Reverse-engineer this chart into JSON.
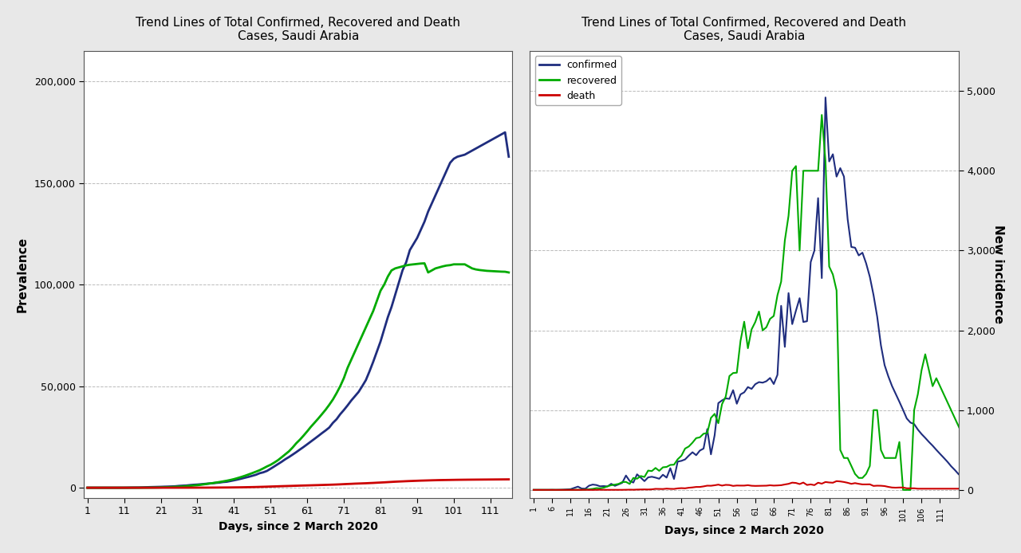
{
  "title": "Trend Lines of Total Confirmed, Recovered and Death\nCases, Saudi Arabia",
  "xlabel": "Days, since 2 March 2020",
  "ylabel_left": "Prevalence",
  "ylabel_right": "New incidence",
  "bg_color": "#e8e8e8",
  "plot_bg": "#ffffff",
  "confirmed_color": "#1f2d7e",
  "recovered_color": "#00aa00",
  "death_color": "#cc0000",
  "legend_labels": [
    "confirmed",
    "recovered",
    "death"
  ],
  "left_xticks": [
    1,
    11,
    21,
    31,
    41,
    51,
    61,
    71,
    81,
    91,
    101,
    111
  ],
  "right_xticks": [
    1,
    6,
    11,
    16,
    21,
    26,
    31,
    36,
    41,
    46,
    51,
    56,
    61,
    66,
    71,
    76,
    81,
    86,
    91,
    96,
    101,
    106,
    111
  ],
  "left_ylim": [
    -5000,
    215000
  ],
  "left_yticks": [
    0,
    50000,
    100000,
    150000,
    200000
  ],
  "right_ylim": [
    -100,
    5500
  ],
  "right_yticks": [
    0,
    1000,
    2000,
    3000,
    4000,
    5000
  ],
  "cumulative_confirmed": [
    0,
    0,
    0,
    0,
    0,
    1,
    1,
    2,
    5,
    11,
    20,
    45,
    86,
    103,
    118,
    171,
    238,
    299,
    344,
    392,
    435,
    511,
    562,
    631,
    720,
    900,
    1012,
    1104,
    1299,
    1453,
    1563,
    1720,
    1885,
    2039,
    2179,
    2369,
    2523,
    2795,
    2932,
    3287,
    3651,
    4033,
    4462,
    4934,
    5369,
    5862,
    6380,
    7142,
    7588,
    8274,
    9362,
    10484,
    11631,
    12772,
    14022,
    15102,
    16299,
    17522,
    18811,
    20077,
    21402,
    22753,
    24097,
    25459,
    26862,
    28189,
    29631,
    31938,
    33731,
    36198,
    38276,
    40522,
    42925,
    45030,
    47144,
    50000,
    53000,
    57345,
    62000,
    67000,
    72000,
    78000,
    84000,
    89000,
    95000,
    101000,
    107000,
    111000,
    117000,
    120000,
    123000,
    127000,
    131000,
    136000,
    140000,
    144000,
    148000,
    152000,
    156000,
    160000,
    162000,
    163000,
    163500,
    164000,
    165000,
    166000,
    167000,
    168000,
    169000,
    170000,
    171000,
    172000,
    173000,
    174000,
    175000,
    163000
  ],
  "cumulative_recovered": [
    0,
    0,
    0,
    0,
    0,
    0,
    0,
    0,
    0,
    0,
    1,
    2,
    3,
    5,
    8,
    16,
    29,
    51,
    70,
    98,
    143,
    202,
    268,
    343,
    441,
    541,
    616,
    766,
    906,
    1080,
    1242,
    1484,
    1720,
    1995,
    2234,
    2517,
    2805,
    3118,
    3434,
    3818,
    4246,
    4764,
    5308,
    5900,
    6549,
    7208,
    7912,
    8625,
    9528,
    10481,
    11317,
    12392,
    13561,
    14988,
    16453,
    17922,
    19789,
    21897,
    23673,
    25685,
    27789,
    30025,
    32024,
    34063,
    36207,
    38387,
    40827,
    43437,
    46564,
    50000,
    54000,
    59000,
    63000,
    67000,
    71000,
    75000,
    79000,
    83000,
    87000,
    92000,
    97000,
    100000,
    104000,
    107000,
    108000,
    108500,
    109000,
    109500,
    109800,
    110000,
    110200,
    110400,
    110500,
    106000,
    107000,
    108000,
    108500,
    109000,
    109400,
    109600,
    110000,
    110000,
    110000,
    110000,
    109000,
    108000,
    107500,
    107200,
    107000,
    106800,
    106700,
    106600,
    106500,
    106400,
    106350,
    106000,
    105800,
    105600
  ],
  "cumulative_deaths": [
    0,
    0,
    0,
    0,
    0,
    0,
    0,
    0,
    0,
    0,
    0,
    0,
    0,
    0,
    1,
    1,
    1,
    2,
    4,
    5,
    6,
    7,
    8,
    9,
    10,
    12,
    15,
    17,
    21,
    26,
    32,
    37,
    44,
    57,
    69,
    80,
    96,
    109,
    121,
    140,
    162,
    182,
    209,
    240,
    277,
    314,
    358,
    411,
    463,
    521,
    587,
    641,
    704,
    765,
    815,
    870,
    924,
    978,
    1037,
    1089,
    1139,
    1190,
    1242,
    1295,
    1353,
    1407,
    1463,
    1522,
    1590,
    1666,
    1757,
    1844,
    1917,
    2009,
    2071,
    2140,
    2200,
    2290,
    2368,
    2467,
    2560,
    2650,
    2759,
    2866,
    2965,
    3054,
    3130,
    3215,
    3291,
    3360,
    3429,
    3497,
    3547,
    3600,
    3652,
    3700,
    3750,
    3782,
    3810,
    3840,
    3870,
    3900,
    3920,
    3940,
    3960,
    3975,
    3990,
    4005,
    4020,
    4033,
    4048,
    4063,
    4078,
    4093,
    4108,
    4120,
    4130,
    4140
  ],
  "daily_confirmed": [
    0,
    0,
    0,
    0,
    0,
    1,
    0,
    1,
    3,
    6,
    9,
    25,
    41,
    17,
    15,
    53,
    67,
    61,
    45,
    48,
    43,
    76,
    51,
    69,
    89,
    180,
    112,
    92,
    195,
    154,
    110,
    157,
    165,
    154,
    140,
    190,
    154,
    272,
    137,
    355,
    364,
    382,
    429,
    472,
    435,
    493,
    518,
    762,
    446,
    686,
    1088,
    1122,
    1147,
    1141,
    1250,
    1080,
    1197,
    1223,
    1289,
    1266,
    1325,
    1351,
    1344,
    1362,
    1403,
    1327,
    1442,
    2307,
    1793,
    2467,
    2078,
    2246,
    2403,
    2105,
    2114,
    2856,
    3000,
    3657,
    2655,
    4919,
    4117,
    4207,
    3927,
    4033,
    3927,
    3392,
    3045,
    3036,
    2939,
    2973,
    2840,
    2671,
    2443,
    2170,
    1814,
    1564,
    1424,
    1303,
    1204,
    1105,
    1002,
    895,
    844,
    825,
    756,
    700,
    652,
    601,
    554,
    502,
    452,
    403,
    353,
    297,
    250,
    198,
    160
  ],
  "daily_recovered": [
    0,
    0,
    0,
    0,
    0,
    0,
    0,
    0,
    0,
    0,
    1,
    1,
    1,
    2,
    3,
    8,
    13,
    22,
    19,
    28,
    45,
    59,
    66,
    75,
    98,
    100,
    75,
    150,
    140,
    174,
    162,
    242,
    236,
    275,
    239,
    283,
    288,
    313,
    316,
    384,
    428,
    518,
    544,
    592,
    649,
    659,
    704,
    713,
    903,
    953,
    836,
    1075,
    1169,
    1427,
    1465,
    1469,
    1867,
    2108,
    1776,
    2012,
    2104,
    2236,
    1999,
    2039,
    2144,
    2180,
    2440,
    2610,
    3127,
    3436,
    4000,
    4059,
    3000,
    4000,
    4000,
    4000,
    4000,
    4000,
    4700,
    4117,
    2800,
    2700,
    2500,
    500,
    400,
    400,
    300,
    200,
    150,
    150,
    200,
    300,
    1000,
    1000,
    500,
    400,
    400,
    400,
    400,
    600,
    0,
    0,
    0,
    1000,
    1200,
    1500,
    1700,
    1500,
    1300,
    1400,
    1300,
    1200,
    1100,
    1000,
    900,
    800,
    700,
    600,
    500,
    400,
    300
  ],
  "daily_deaths": [
    0,
    0,
    0,
    0,
    0,
    0,
    0,
    0,
    0,
    0,
    0,
    0,
    0,
    0,
    1,
    0,
    0,
    1,
    2,
    1,
    1,
    1,
    1,
    1,
    1,
    2,
    3,
    2,
    4,
    5,
    6,
    5,
    7,
    13,
    12,
    11,
    16,
    13,
    12,
    19,
    22,
    20,
    27,
    31,
    37,
    37,
    44,
    53,
    52,
    58,
    66,
    54,
    63,
    61,
    50,
    55,
    54,
    54,
    59,
    52,
    50,
    51,
    52,
    53,
    58,
    54,
    56,
    59,
    68,
    76,
    91,
    87,
    73,
    92,
    62,
    69,
    60,
    90,
    78,
    99,
    93,
    90,
    110,
    106,
    99,
    89,
    76,
    85,
    76,
    69,
    69,
    70,
    50,
    53,
    52,
    48,
    38,
    30,
    28,
    30,
    30,
    20,
    20,
    20,
    15,
    15,
    15,
    15,
    15,
    15,
    15,
    15,
    15,
    15,
    15,
    15,
    15,
    15,
    12
  ]
}
